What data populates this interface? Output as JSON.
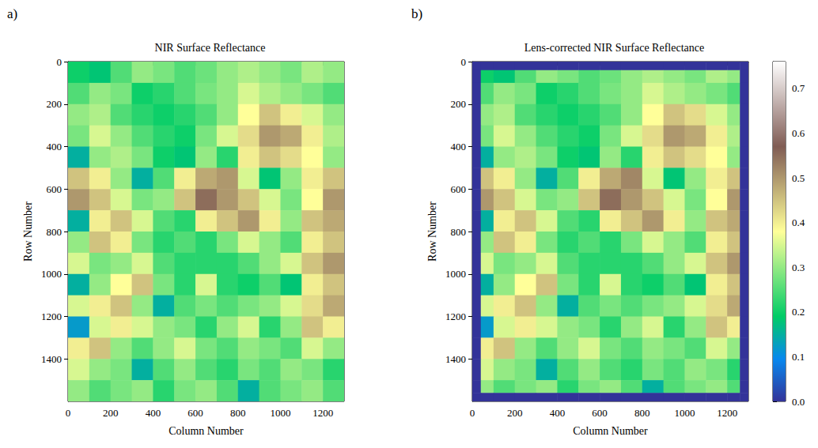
{
  "chart_data": [
    {
      "type": "heatmap",
      "panel": "a)",
      "title": "NIR Surface Reflectance",
      "x_label": "Column Number",
      "y_label": "Row Number",
      "xlim": [
        0,
        1300
      ],
      "ylim": [
        0,
        1600
      ],
      "xticks": [
        0,
        200,
        400,
        600,
        800,
        1000,
        1200
      ],
      "yticks": [
        0,
        200,
        400,
        600,
        800,
        1000,
        1200,
        1400
      ],
      "grid": false,
      "x_edges": [
        0,
        100,
        200,
        300,
        400,
        500,
        600,
        700,
        800,
        900,
        1000,
        1100,
        1200,
        1300
      ],
      "y_edges": [
        0,
        100,
        200,
        300,
        400,
        500,
        600,
        700,
        800,
        900,
        1000,
        1100,
        1200,
        1300,
        1400,
        1500,
        1600
      ],
      "cells": [
        [
          0.2,
          0.18,
          0.25,
          0.3,
          0.28,
          0.25,
          0.27,
          0.3,
          0.32,
          0.3,
          0.28,
          0.32,
          0.3
        ],
        [
          0.25,
          0.3,
          0.28,
          0.2,
          0.22,
          0.25,
          0.28,
          0.3,
          0.35,
          0.32,
          0.3,
          0.28,
          0.25
        ],
        [
          0.3,
          0.32,
          0.25,
          0.22,
          0.2,
          0.22,
          0.25,
          0.3,
          0.38,
          0.45,
          0.4,
          0.35,
          0.3
        ],
        [
          0.28,
          0.35,
          0.3,
          0.25,
          0.22,
          0.2,
          0.28,
          0.35,
          0.42,
          0.5,
          0.48,
          0.4,
          0.32
        ],
        [
          0.15,
          0.3,
          0.32,
          0.28,
          0.2,
          0.18,
          0.3,
          0.22,
          0.4,
          0.45,
          0.42,
          0.38,
          0.3
        ],
        [
          0.45,
          0.4,
          0.3,
          0.15,
          0.25,
          0.4,
          0.48,
          0.5,
          0.35,
          0.18,
          0.3,
          0.4,
          0.45
        ],
        [
          0.5,
          0.45,
          0.35,
          0.28,
          0.3,
          0.45,
          0.55,
          0.5,
          0.45,
          0.35,
          0.28,
          0.38,
          0.5
        ],
        [
          0.15,
          0.4,
          0.45,
          0.35,
          0.25,
          0.22,
          0.4,
          0.45,
          0.5,
          0.4,
          0.3,
          0.45,
          0.48
        ],
        [
          0.3,
          0.45,
          0.4,
          0.28,
          0.22,
          0.25,
          0.22,
          0.28,
          0.35,
          0.3,
          0.25,
          0.4,
          0.45
        ],
        [
          0.35,
          0.28,
          0.3,
          0.35,
          0.25,
          0.22,
          0.22,
          0.22,
          0.25,
          0.3,
          0.35,
          0.45,
          0.5
        ],
        [
          0.15,
          0.3,
          0.38,
          0.45,
          0.28,
          0.22,
          0.35,
          0.22,
          0.2,
          0.25,
          0.18,
          0.4,
          0.45
        ],
        [
          0.35,
          0.4,
          0.45,
          0.3,
          0.15,
          0.25,
          0.28,
          0.25,
          0.28,
          0.3,
          0.35,
          0.42,
          0.48
        ],
        [
          0.12,
          0.35,
          0.4,
          0.35,
          0.3,
          0.28,
          0.22,
          0.3,
          0.35,
          0.22,
          0.3,
          0.45,
          0.4
        ],
        [
          0.4,
          0.45,
          0.3,
          0.25,
          0.3,
          0.35,
          0.28,
          0.25,
          0.3,
          0.28,
          0.25,
          0.35,
          0.3
        ],
        [
          0.35,
          0.3,
          0.28,
          0.15,
          0.25,
          0.3,
          0.25,
          0.22,
          0.28,
          0.25,
          0.3,
          0.28,
          0.22
        ],
        [
          0.3,
          0.25,
          0.28,
          0.3,
          0.22,
          0.28,
          0.3,
          0.25,
          0.15,
          0.25,
          0.28,
          0.3,
          0.25
        ]
      ]
    },
    {
      "type": "heatmap",
      "panel": "b)",
      "title": "Lens-corrected NIR Surface Reflectance",
      "x_label": "Column Number",
      "y_label": "Row Number",
      "xlim": [
        0,
        1300
      ],
      "ylim": [
        0,
        1600
      ],
      "xticks": [
        0,
        200,
        400,
        600,
        800,
        1000,
        1200
      ],
      "yticks": [
        0,
        200,
        400,
        600,
        800,
        1000,
        1200,
        1400
      ],
      "grid": false,
      "x_edges": [
        0,
        40,
        100,
        200,
        300,
        400,
        500,
        600,
        700,
        800,
        900,
        1000,
        1100,
        1200,
        1260,
        1300
      ],
      "y_edges": [
        0,
        40,
        100,
        200,
        300,
        400,
        500,
        600,
        700,
        800,
        900,
        1000,
        1100,
        1200,
        1300,
        1400,
        1500,
        1560,
        1600
      ],
      "cells": [
        [
          0,
          0,
          0,
          0,
          0,
          0,
          0,
          0,
          0,
          0,
          0,
          0,
          0,
          0,
          0
        ],
        [
          0,
          0.2,
          0.18,
          0.25,
          0.3,
          0.28,
          0.25,
          0.27,
          0.3,
          0.32,
          0.3,
          0.28,
          0.32,
          0.3,
          0
        ],
        [
          0,
          0.25,
          0.3,
          0.28,
          0.2,
          0.22,
          0.25,
          0.28,
          0.3,
          0.35,
          0.32,
          0.3,
          0.28,
          0.25,
          0
        ],
        [
          0,
          0.3,
          0.32,
          0.25,
          0.22,
          0.2,
          0.22,
          0.25,
          0.3,
          0.38,
          0.45,
          0.42,
          0.35,
          0.3,
          0
        ],
        [
          0,
          0.28,
          0.35,
          0.3,
          0.25,
          0.22,
          0.2,
          0.28,
          0.35,
          0.42,
          0.5,
          0.48,
          0.4,
          0.32,
          0
        ],
        [
          0,
          0.15,
          0.3,
          0.32,
          0.28,
          0.2,
          0.18,
          0.3,
          0.22,
          0.4,
          0.45,
          0.42,
          0.38,
          0.3,
          0
        ],
        [
          0,
          0.45,
          0.4,
          0.3,
          0.15,
          0.25,
          0.4,
          0.48,
          0.52,
          0.35,
          0.18,
          0.3,
          0.4,
          0.45,
          0
        ],
        [
          0,
          0.5,
          0.45,
          0.35,
          0.28,
          0.3,
          0.45,
          0.55,
          0.5,
          0.45,
          0.35,
          0.28,
          0.38,
          0.5,
          0
        ],
        [
          0,
          0.15,
          0.4,
          0.45,
          0.35,
          0.25,
          0.22,
          0.4,
          0.45,
          0.5,
          0.4,
          0.3,
          0.45,
          0.48,
          0
        ],
        [
          0,
          0.3,
          0.45,
          0.4,
          0.28,
          0.22,
          0.25,
          0.22,
          0.28,
          0.35,
          0.3,
          0.25,
          0.4,
          0.45,
          0
        ],
        [
          0,
          0.35,
          0.28,
          0.3,
          0.35,
          0.25,
          0.22,
          0.22,
          0.22,
          0.25,
          0.3,
          0.35,
          0.45,
          0.5,
          0
        ],
        [
          0,
          0.15,
          0.3,
          0.38,
          0.45,
          0.28,
          0.22,
          0.35,
          0.22,
          0.2,
          0.25,
          0.18,
          0.4,
          0.45,
          0
        ],
        [
          0,
          0.35,
          0.4,
          0.45,
          0.3,
          0.15,
          0.25,
          0.28,
          0.25,
          0.28,
          0.3,
          0.35,
          0.42,
          0.48,
          0
        ],
        [
          0,
          0.12,
          0.35,
          0.4,
          0.35,
          0.3,
          0.28,
          0.22,
          0.3,
          0.35,
          0.22,
          0.3,
          0.45,
          0.4,
          0
        ],
        [
          0,
          0.4,
          0.45,
          0.3,
          0.25,
          0.3,
          0.35,
          0.28,
          0.25,
          0.3,
          0.28,
          0.25,
          0.35,
          0.3,
          0
        ],
        [
          0,
          0.35,
          0.3,
          0.28,
          0.15,
          0.25,
          0.3,
          0.25,
          0.22,
          0.28,
          0.25,
          0.3,
          0.28,
          0.22,
          0
        ],
        [
          0,
          0.3,
          0.25,
          0.28,
          0.3,
          0.22,
          0.28,
          0.3,
          0.25,
          0.15,
          0.25,
          0.28,
          0.3,
          0.25,
          0
        ],
        [
          0,
          0,
          0,
          0,
          0,
          0,
          0,
          0,
          0,
          0,
          0,
          0,
          0,
          0,
          0
        ]
      ],
      "colorbar": {
        "range": [
          0,
          0.76
        ],
        "ticks": [
          {
            "value": 0,
            "label": "0.0"
          },
          0.1,
          0.2,
          0.3,
          0.4,
          0.5,
          0.6,
          0.7
        ]
      }
    }
  ]
}
